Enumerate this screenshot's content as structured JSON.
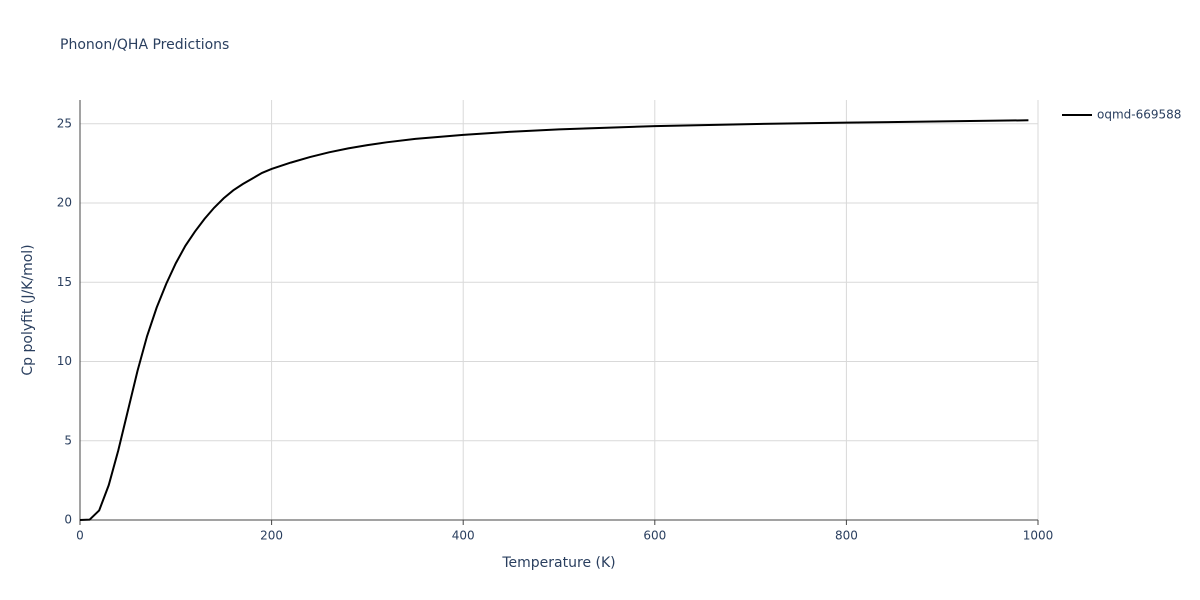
{
  "chart_data": {
    "type": "line",
    "title": "Phonon/QHA Predictions",
    "x_label": "Temperature (K)",
    "y_label": "Cp polyfit (J/K/mol)",
    "x": [
      0,
      10,
      20,
      30,
      40,
      50,
      60,
      70,
      80,
      90,
      100,
      110,
      120,
      130,
      140,
      150,
      160,
      170,
      180,
      190,
      200,
      220,
      240,
      260,
      280,
      300,
      320,
      350,
      400,
      450,
      500,
      600,
      700,
      800,
      900,
      990
    ],
    "series": [
      {
        "name": "oqmd-669588",
        "color": "#000000",
        "values": [
          0,
          0.02,
          0.6,
          2.2,
          4.4,
          6.9,
          9.4,
          11.6,
          13.4,
          14.9,
          16.2,
          17.3,
          18.2,
          19.0,
          19.7,
          20.3,
          20.8,
          21.2,
          21.55,
          21.9,
          22.15,
          22.55,
          22.9,
          23.2,
          23.45,
          23.65,
          23.83,
          24.05,
          24.3,
          24.5,
          24.65,
          24.85,
          24.98,
          25.07,
          25.15,
          25.22
        ]
      }
    ],
    "xlim": [
      0,
      1000
    ],
    "xticks": [
      0,
      200,
      400,
      600,
      800,
      1000
    ],
    "ylim": [
      0,
      26.5
    ],
    "yticks": [
      0,
      5,
      10,
      15,
      20,
      25
    ],
    "grid": true,
    "legend": "right"
  }
}
